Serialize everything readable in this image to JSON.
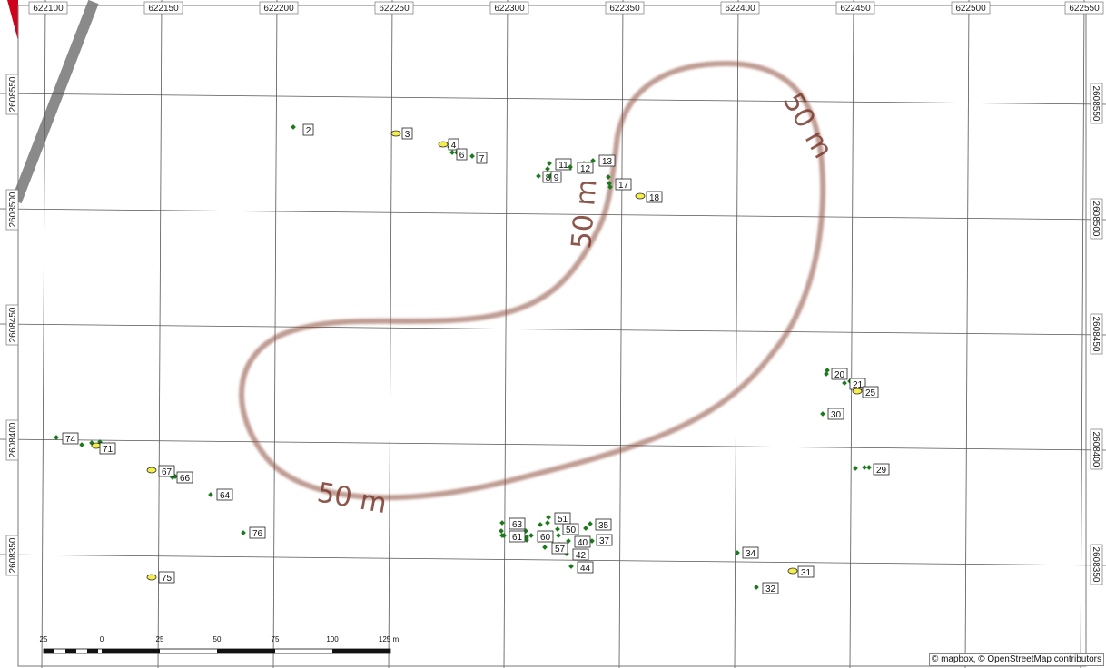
{
  "map": {
    "attribution": "© mapbox, © OpenStreetMap contributors",
    "colors": {
      "contour": "#8b4a3c",
      "point_dot": "#1a7a1a",
      "point_yellow": "#f5ee48",
      "road": "#8a8a8a",
      "corner": "#d0021b"
    },
    "easting_labels": [
      "622100",
      "622150",
      "622200",
      "622250",
      "622300",
      "622350",
      "622400",
      "622450",
      "622500",
      "622550"
    ],
    "northing_labels": [
      "2608550",
      "2608500",
      "2608450",
      "2608400",
      "2608350"
    ],
    "contours": [
      {
        "label": "50 m",
        "label_positions": 3
      }
    ],
    "contour_label_1": "50 m",
    "contour_label_2": "50 m",
    "contour_label_3": "50 m",
    "scale_bar": {
      "labels": [
        "25",
        "0",
        "25",
        "50",
        "75",
        "100",
        "125 m"
      ]
    },
    "points": [
      {
        "id": "2",
        "type": "dot"
      },
      {
        "id": "3",
        "type": "yellow"
      },
      {
        "id": "4",
        "type": "yellow"
      },
      {
        "id": "6",
        "type": "dot"
      },
      {
        "id": "7",
        "type": "dot"
      },
      {
        "id": "8",
        "type": "dot"
      },
      {
        "id": "9",
        "type": "dot"
      },
      {
        "id": "11",
        "type": "dot"
      },
      {
        "id": "12",
        "type": "dot"
      },
      {
        "id": "13",
        "type": "dot"
      },
      {
        "id": "17",
        "type": "dot"
      },
      {
        "id": "18",
        "type": "yellow"
      },
      {
        "id": "20",
        "type": "dot"
      },
      {
        "id": "21",
        "type": "dot"
      },
      {
        "id": "25",
        "type": "yellow"
      },
      {
        "id": "29",
        "type": "dot"
      },
      {
        "id": "30",
        "type": "dot"
      },
      {
        "id": "31",
        "type": "yellow"
      },
      {
        "id": "32",
        "type": "dot"
      },
      {
        "id": "34",
        "type": "dot"
      },
      {
        "id": "35",
        "type": "dot"
      },
      {
        "id": "37",
        "type": "dot"
      },
      {
        "id": "40",
        "type": "dot"
      },
      {
        "id": "42",
        "type": "dot"
      },
      {
        "id": "44",
        "type": "dot"
      },
      {
        "id": "50",
        "type": "dot"
      },
      {
        "id": "51",
        "type": "dot"
      },
      {
        "id": "57",
        "type": "dot"
      },
      {
        "id": "60",
        "type": "dot"
      },
      {
        "id": "61",
        "type": "dot"
      },
      {
        "id": "63",
        "type": "dot"
      },
      {
        "id": "64",
        "type": "dot"
      },
      {
        "id": "66",
        "type": "dot"
      },
      {
        "id": "67",
        "type": "yellow"
      },
      {
        "id": "71",
        "type": "yellow"
      },
      {
        "id": "74",
        "type": "dot"
      },
      {
        "id": "75",
        "type": "yellow"
      },
      {
        "id": "76",
        "type": "dot"
      }
    ]
  }
}
